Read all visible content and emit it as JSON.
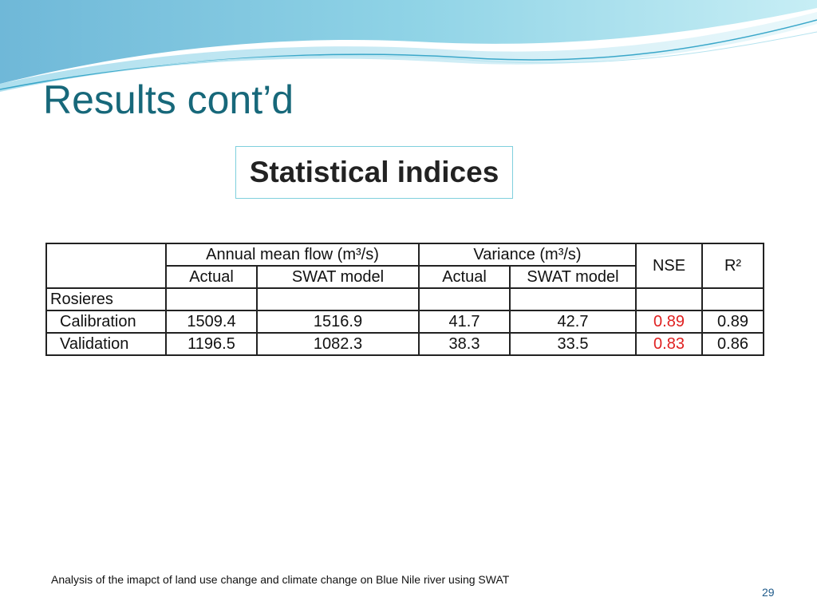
{
  "slide": {
    "title": "Results cont’d",
    "subtitle": "Statistical indices",
    "footer": "Analysis of the imapct of land use change and climate change on Blue Nile river using SWAT",
    "page_number": "29"
  },
  "table": {
    "group_headers": {
      "annual_mean_flow": "Annual mean flow (m³/s)",
      "variance": "Variance (m³/s)",
      "nse": "NSE",
      "r2": "R²"
    },
    "sub_headers": {
      "actual_1": "Actual",
      "swat_1": "SWAT model",
      "actual_2": "Actual",
      "swat_2": "SWAT model"
    },
    "section": "Rosieres",
    "rows": [
      {
        "label": "Calibration",
        "flow_actual": "1509.4",
        "flow_swat": "1516.9",
        "var_actual": "41.7",
        "var_swat": "42.7",
        "nse": "0.89",
        "r2": "0.89"
      },
      {
        "label": "Validation",
        "flow_actual": "1196.5",
        "flow_swat": "1082.3",
        "var_actual": "38.3",
        "var_swat": "33.5",
        "nse": "0.83",
        "r2": "0.86"
      }
    ],
    "colors": {
      "highlight": "#e02020",
      "title": "#17687a"
    }
  }
}
